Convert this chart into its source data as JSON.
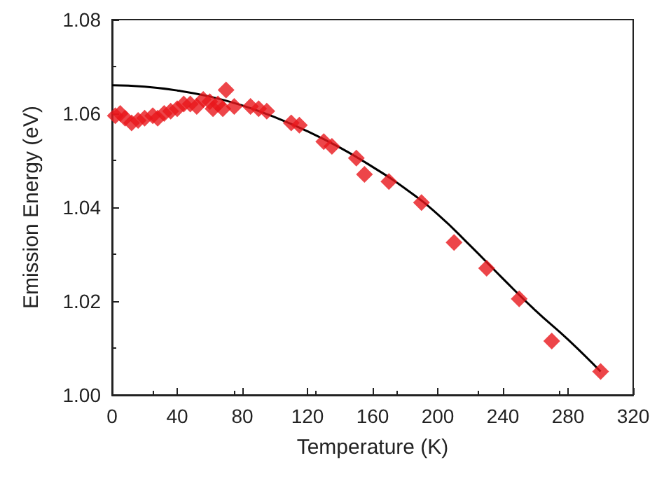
{
  "chart_data": {
    "type": "scatter",
    "xlabel": "Temperature (K)",
    "ylabel": "Emission Energy (eV)",
    "xlim": [
      0,
      320
    ],
    "xticks": [
      0,
      40,
      80,
      120,
      160,
      200,
      240,
      280,
      320
    ],
    "ylim": [
      1.0,
      1.08
    ],
    "yticks": [
      {
        "value": 1.0,
        "label": "1.00"
      },
      {
        "value": 1.02,
        "label": "1.02"
      },
      {
        "value": 1.04,
        "label": "1.04"
      },
      {
        "value": 1.06,
        "label": "1.06"
      },
      {
        "value": 1.08,
        "label": "1.08"
      }
    ],
    "grid": false,
    "series": [
      {
        "color": "#e8161c",
        "marker": "diamond",
        "x": [
          2,
          5,
          8,
          12,
          16,
          20,
          25,
          28,
          32,
          36,
          40,
          44,
          48,
          52,
          56,
          60,
          62,
          65,
          68,
          70,
          75,
          85,
          90,
          95,
          110,
          115,
          130,
          135,
          150,
          155,
          170,
          190,
          210,
          230,
          250,
          270,
          300
        ],
        "values": [
          1.0595,
          1.06,
          1.059,
          1.058,
          1.0585,
          1.059,
          1.0595,
          1.059,
          1.06,
          1.0605,
          1.061,
          1.062,
          1.062,
          1.0615,
          1.063,
          1.0625,
          1.061,
          1.062,
          1.061,
          1.065,
          1.0615,
          1.0615,
          1.061,
          1.0605,
          1.058,
          1.0575,
          1.054,
          1.053,
          1.0505,
          1.047,
          1.0455,
          1.041,
          1.0325,
          1.027,
          1.0205,
          1.0115,
          1.005
        ]
      },
      {
        "type": "line",
        "color": "#000000",
        "marker": "none",
        "line_style": "solid",
        "x": [
          0,
          20,
          40,
          60,
          80,
          100,
          120,
          140,
          160,
          180,
          200,
          220,
          240,
          260,
          280,
          300
        ],
        "values": [
          1.066,
          1.0657,
          1.0649,
          1.0636,
          1.0617,
          1.0592,
          1.0562,
          1.0527,
          1.0486,
          1.044,
          1.0385,
          1.0318,
          1.0248,
          1.018,
          1.0118,
          1.005
        ]
      }
    ]
  }
}
